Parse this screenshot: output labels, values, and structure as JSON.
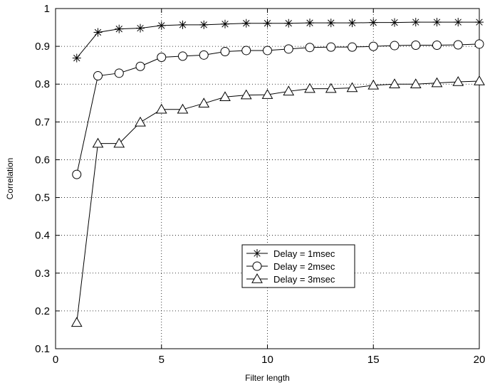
{
  "chart_data": {
    "type": "line",
    "xlabel": "Filter length",
    "ylabel": "Correlation",
    "xlim": [
      0,
      20
    ],
    "ylim": [
      0.1,
      1
    ],
    "xticks": [
      "0",
      "5",
      "10",
      "15",
      "20"
    ],
    "yticks": [
      "0.1",
      "0.2",
      "0.3",
      "0.4",
      "0.5",
      "0.6",
      "0.7",
      "0.8",
      "0.9",
      "1"
    ],
    "grid": true,
    "legend_position": "center-right",
    "x": [
      1,
      2,
      3,
      4,
      5,
      6,
      7,
      8,
      9,
      10,
      11,
      12,
      13,
      14,
      15,
      16,
      17,
      18,
      19,
      20
    ],
    "series": [
      {
        "name": "Delay = 1msec",
        "marker": "asterisk",
        "values": [
          0.869,
          0.937,
          0.946,
          0.948,
          0.955,
          0.957,
          0.957,
          0.959,
          0.961,
          0.961,
          0.961,
          0.962,
          0.962,
          0.962,
          0.963,
          0.963,
          0.964,
          0.964,
          0.964,
          0.964
        ]
      },
      {
        "name": "Delay = 2msec",
        "marker": "circle",
        "values": [
          0.561,
          0.822,
          0.829,
          0.847,
          0.871,
          0.874,
          0.877,
          0.886,
          0.889,
          0.889,
          0.893,
          0.897,
          0.898,
          0.898,
          0.9,
          0.902,
          0.903,
          0.903,
          0.904,
          0.906
        ]
      },
      {
        "name": "Delay = 3msec",
        "marker": "triangle",
        "values": [
          0.169,
          0.643,
          0.643,
          0.699,
          0.733,
          0.733,
          0.749,
          0.766,
          0.771,
          0.772,
          0.781,
          0.788,
          0.788,
          0.79,
          0.797,
          0.8,
          0.8,
          0.803,
          0.806,
          0.808
        ]
      }
    ]
  }
}
